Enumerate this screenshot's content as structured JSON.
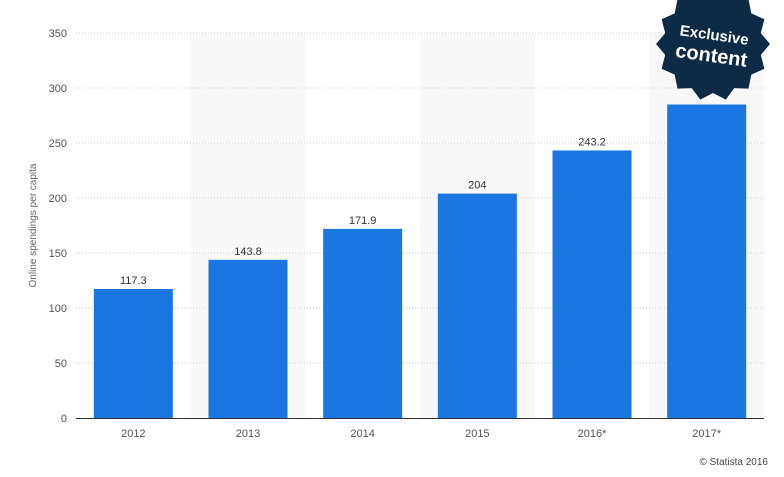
{
  "chart_data": {
    "type": "bar",
    "categories": [
      "2012",
      "2013",
      "2014",
      "2015",
      "2016*",
      "2017*"
    ],
    "values": [
      117.3,
      143.8,
      171.9,
      204,
      243.2,
      285
    ],
    "data_labels": [
      "117.3",
      "143.8",
      "171.9",
      "204",
      "243.2",
      ""
    ],
    "xlabel": "",
    "ylabel": "Online spendings per capita",
    "ylim": [
      0,
      350
    ],
    "yticks": [
      0,
      50,
      100,
      150,
      200,
      250,
      300,
      350
    ],
    "grid": true,
    "bar_color": "#1a76e0",
    "grid_color": "#cfcfcf",
    "band_color": "#f8f8f8"
  },
  "badge": {
    "line1": "Exclusive",
    "line2": "content",
    "color": "#0e2a44"
  },
  "credit": "© Statista 2016"
}
